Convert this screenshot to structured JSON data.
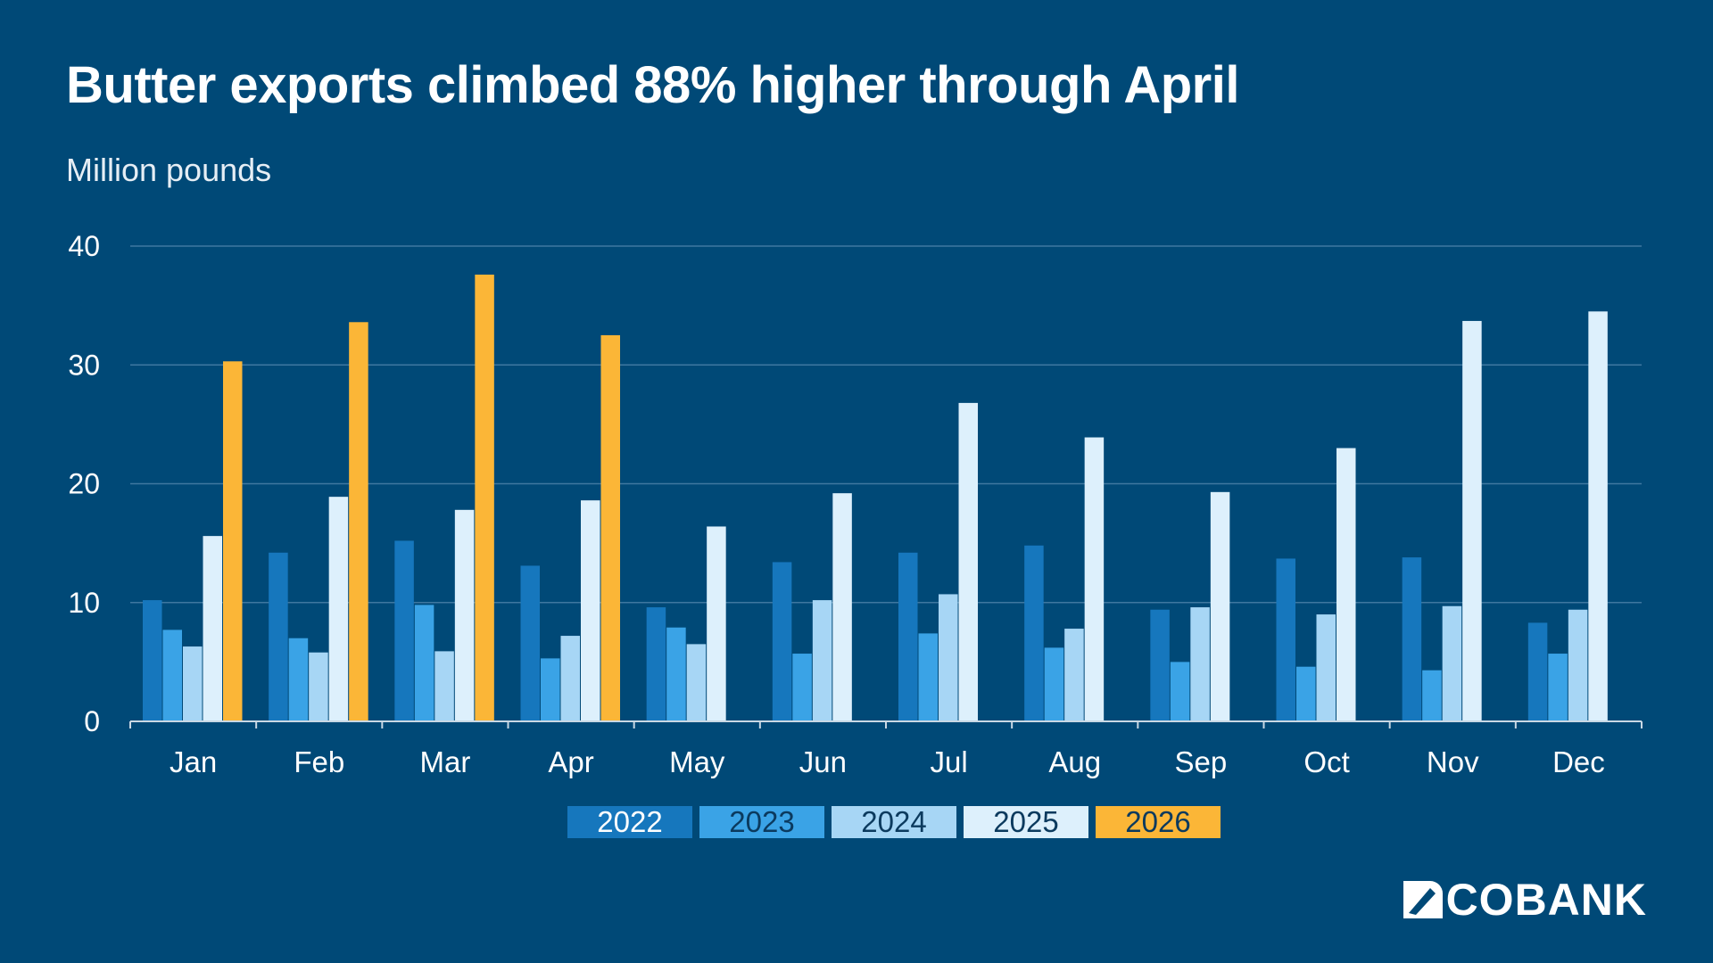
{
  "chart_data": {
    "type": "bar",
    "title": "Butter exports climbed 88% higher through April",
    "ylabel": "Million pounds",
    "xlabel": "",
    "ylim": [
      0,
      40
    ],
    "yticks": [
      "0",
      "10",
      "20",
      "30",
      "40"
    ],
    "grid": true,
    "legend_position": "bottom",
    "categories": [
      "Jan",
      "Feb",
      "Mar",
      "Apr",
      "May",
      "Jun",
      "Jul",
      "Aug",
      "Sep",
      "Oct",
      "Nov",
      "Dec"
    ],
    "series": [
      {
        "name": "2022",
        "color": "#1677bd",
        "legend_text_color": "#ffffff",
        "values": [
          10.2,
          14.2,
          15.2,
          13.1,
          9.6,
          13.4,
          14.2,
          14.8,
          9.4,
          13.7,
          13.8,
          8.3
        ]
      },
      {
        "name": "2023",
        "color": "#3aa3e6",
        "legend_text_color": "#0b3a5e",
        "values": [
          7.7,
          7.0,
          9.8,
          5.3,
          7.9,
          5.7,
          7.4,
          6.2,
          5.0,
          4.6,
          4.3,
          5.7
        ]
      },
      {
        "name": "2024",
        "color": "#a7d6f5",
        "legend_text_color": "#0b3a5e",
        "values": [
          6.3,
          5.8,
          5.9,
          7.2,
          6.5,
          10.2,
          10.7,
          7.8,
          9.6,
          9.0,
          9.7,
          9.4
        ]
      },
      {
        "name": "2025",
        "color": "#ddf0fc",
        "legend_text_color": "#0b3a5e",
        "values": [
          15.6,
          18.9,
          17.8,
          18.6,
          16.4,
          19.2,
          26.8,
          23.9,
          19.3,
          23.0,
          33.7,
          34.5
        ]
      },
      {
        "name": "2026",
        "color": "#fbb637",
        "legend_text_color": "#0b3a5e",
        "values": [
          30.3,
          33.6,
          37.6,
          32.5,
          null,
          null,
          null,
          null,
          null,
          null,
          null,
          null
        ]
      }
    ]
  },
  "branding": {
    "logo_text": "COBANK",
    "logo_icon": "cobank-logo-icon"
  },
  "colors": {
    "background": "#004977",
    "gridline": "#3f78a0",
    "axis": "#c9d8e4"
  }
}
